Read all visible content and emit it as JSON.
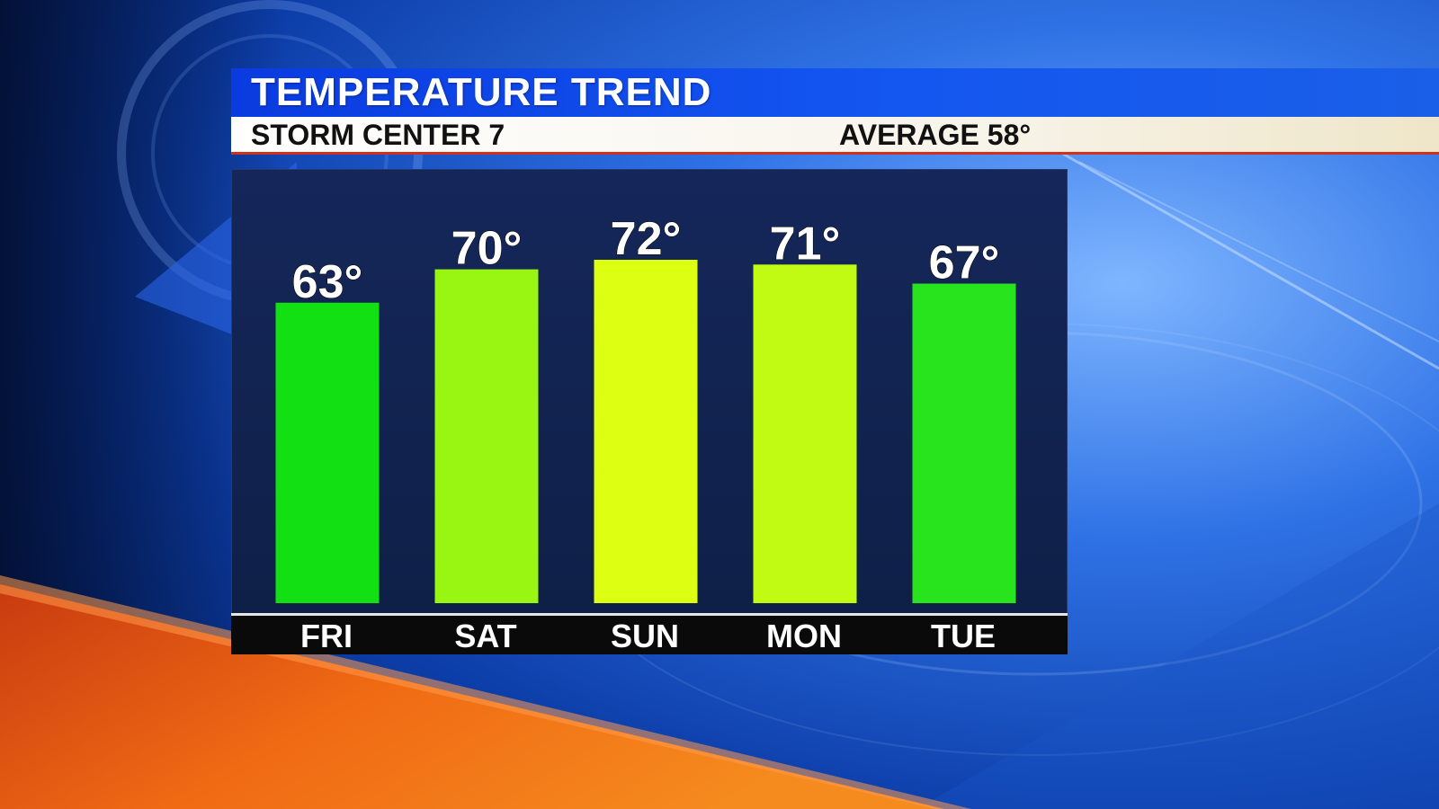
{
  "header": {
    "title": "TEMPERATURE TREND",
    "station": "STORM CENTER 7",
    "average": "AVERAGE 58°"
  },
  "colors": {
    "title_bar": "#0a3be0",
    "bar_cool": "#14e014",
    "bar_warm": "#dcff14"
  },
  "chart_data": {
    "type": "bar",
    "categories": [
      "FRI",
      "SAT",
      "SUN",
      "MON",
      "TUE"
    ],
    "values": [
      63,
      70,
      72,
      71,
      67
    ],
    "value_labels": [
      "63°",
      "70°",
      "72°",
      "71°",
      "67°"
    ],
    "bar_colors": [
      "#12e012",
      "#99f512",
      "#ddff12",
      "#c1fa12",
      "#28e41c"
    ],
    "title": "TEMPERATURE TREND",
    "xlabel": "",
    "ylabel": "",
    "grid": false,
    "legend": "none"
  }
}
